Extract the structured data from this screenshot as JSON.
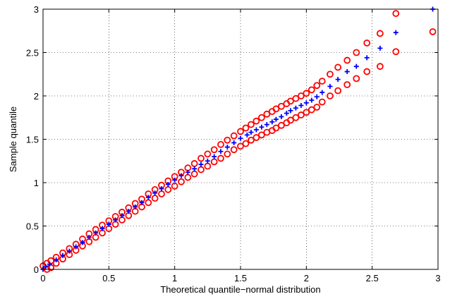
{
  "chart_data": {
    "type": "scatter",
    "title": "",
    "xlabel": "Theoretical quantile−normal distribution",
    "ylabel": "Sample quantile",
    "xlim": [
      0,
      3
    ],
    "ylim": [
      0,
      3
    ],
    "grid": true,
    "x_ticks": [
      0,
      0.5,
      1,
      1.5,
      2,
      2.5,
      3
    ],
    "y_ticks": [
      0,
      0.5,
      1,
      1.5,
      2,
      2.5,
      3
    ],
    "x_tick_labels": [
      "0",
      "0.5",
      "1",
      "1.5",
      "2",
      "2.5",
      "3"
    ],
    "y_tick_labels": [
      "0",
      "0.5",
      "1",
      "1.5",
      "2",
      "2.5",
      "3"
    ],
    "series": [
      {
        "marker": "plus",
        "color": "#0000ff",
        "points": [
          [
            0.0,
            0.0
          ],
          [
            0.02,
            0.03
          ],
          [
            0.05,
            0.06
          ],
          [
            0.1,
            0.11
          ],
          [
            0.15,
            0.16
          ],
          [
            0.2,
            0.21
          ],
          [
            0.25,
            0.26
          ],
          [
            0.3,
            0.31
          ],
          [
            0.35,
            0.37
          ],
          [
            0.4,
            0.42
          ],
          [
            0.45,
            0.47
          ],
          [
            0.5,
            0.52
          ],
          [
            0.55,
            0.57
          ],
          [
            0.6,
            0.62
          ],
          [
            0.65,
            0.67
          ],
          [
            0.7,
            0.72
          ],
          [
            0.75,
            0.77
          ],
          [
            0.8,
            0.83
          ],
          [
            0.85,
            0.88
          ],
          [
            0.9,
            0.93
          ],
          [
            0.95,
            0.98
          ],
          [
            1.0,
            1.03
          ],
          [
            1.05,
            1.08
          ],
          [
            1.1,
            1.12
          ],
          [
            1.15,
            1.16
          ],
          [
            1.2,
            1.21
          ],
          [
            1.25,
            1.25
          ],
          [
            1.3,
            1.3
          ],
          [
            1.35,
            1.36
          ],
          [
            1.4,
            1.41
          ],
          [
            1.45,
            1.46
          ],
          [
            1.5,
            1.51
          ],
          [
            1.55,
            1.55
          ],
          [
            1.58,
            1.58
          ],
          [
            1.62,
            1.61
          ],
          [
            1.66,
            1.64
          ],
          [
            1.7,
            1.67
          ],
          [
            1.74,
            1.7
          ],
          [
            1.77,
            1.73
          ],
          [
            1.81,
            1.76
          ],
          [
            1.85,
            1.8
          ],
          [
            1.88,
            1.83
          ],
          [
            1.92,
            1.86
          ],
          [
            1.96,
            1.89
          ],
          [
            2.0,
            1.92
          ],
          [
            2.04,
            1.95
          ],
          [
            2.08,
            1.99
          ],
          [
            2.12,
            2.04
          ],
          [
            2.18,
            2.11
          ],
          [
            2.24,
            2.19
          ],
          [
            2.31,
            2.28
          ],
          [
            2.38,
            2.34
          ],
          [
            2.46,
            2.44
          ],
          [
            2.56,
            2.55
          ],
          [
            2.68,
            2.73
          ],
          [
            2.96,
            3.0
          ]
        ]
      },
      {
        "marker": "circle",
        "color": "#ff0000",
        "points": [
          [
            0.0,
            0.04
          ],
          [
            0.03,
            0.07
          ],
          [
            0.06,
            0.1
          ],
          [
            0.1,
            0.14
          ],
          [
            0.15,
            0.19
          ],
          [
            0.2,
            0.24
          ],
          [
            0.25,
            0.29
          ],
          [
            0.3,
            0.35
          ],
          [
            0.35,
            0.41
          ],
          [
            0.4,
            0.46
          ],
          [
            0.45,
            0.51
          ],
          [
            0.5,
            0.56
          ],
          [
            0.55,
            0.61
          ],
          [
            0.6,
            0.66
          ],
          [
            0.65,
            0.71
          ],
          [
            0.7,
            0.76
          ],
          [
            0.75,
            0.81
          ],
          [
            0.8,
            0.87
          ],
          [
            0.85,
            0.92
          ],
          [
            0.9,
            0.97
          ],
          [
            0.95,
            1.02
          ],
          [
            1.0,
            1.07
          ],
          [
            1.05,
            1.12
          ],
          [
            1.1,
            1.17
          ],
          [
            1.15,
            1.22
          ],
          [
            1.2,
            1.28
          ],
          [
            1.25,
            1.33
          ],
          [
            1.3,
            1.38
          ],
          [
            1.35,
            1.44
          ],
          [
            1.4,
            1.49
          ],
          [
            1.45,
            1.54
          ],
          [
            1.5,
            1.59
          ],
          [
            1.54,
            1.63
          ],
          [
            1.58,
            1.67
          ],
          [
            1.62,
            1.71
          ],
          [
            1.66,
            1.75
          ],
          [
            1.7,
            1.79
          ],
          [
            1.74,
            1.82
          ],
          [
            1.77,
            1.85
          ],
          [
            1.81,
            1.88
          ],
          [
            1.85,
            1.91
          ],
          [
            1.88,
            1.94
          ],
          [
            1.92,
            1.97
          ],
          [
            1.96,
            2.0
          ],
          [
            2.0,
            2.03
          ],
          [
            2.04,
            2.07
          ],
          [
            2.08,
            2.12
          ],
          [
            2.12,
            2.17
          ],
          [
            2.18,
            2.25
          ],
          [
            2.24,
            2.33
          ],
          [
            2.31,
            2.41
          ],
          [
            2.38,
            2.5
          ],
          [
            2.46,
            2.61
          ],
          [
            2.56,
            2.72
          ],
          [
            2.68,
            2.95
          ],
          [
            2.96,
            2.74
          ]
        ]
      },
      {
        "marker": "circle",
        "color": "#ff0000",
        "points": [
          [
            0.03,
            0.0
          ],
          [
            0.06,
            0.02
          ],
          [
            0.1,
            0.07
          ],
          [
            0.15,
            0.12
          ],
          [
            0.2,
            0.17
          ],
          [
            0.25,
            0.22
          ],
          [
            0.3,
            0.27
          ],
          [
            0.35,
            0.32
          ],
          [
            0.4,
            0.37
          ],
          [
            0.45,
            0.42
          ],
          [
            0.5,
            0.47
          ],
          [
            0.55,
            0.52
          ],
          [
            0.6,
            0.57
          ],
          [
            0.65,
            0.62
          ],
          [
            0.7,
            0.67
          ],
          [
            0.75,
            0.72
          ],
          [
            0.8,
            0.77
          ],
          [
            0.85,
            0.82
          ],
          [
            0.9,
            0.87
          ],
          [
            0.95,
            0.92
          ],
          [
            1.0,
            0.96
          ],
          [
            1.05,
            1.01
          ],
          [
            1.1,
            1.06
          ],
          [
            1.15,
            1.1
          ],
          [
            1.2,
            1.15
          ],
          [
            1.25,
            1.19
          ],
          [
            1.3,
            1.24
          ],
          [
            1.35,
            1.28
          ],
          [
            1.4,
            1.33
          ],
          [
            1.45,
            1.38
          ],
          [
            1.5,
            1.42
          ],
          [
            1.54,
            1.45
          ],
          [
            1.58,
            1.49
          ],
          [
            1.62,
            1.52
          ],
          [
            1.66,
            1.55
          ],
          [
            1.7,
            1.58
          ],
          [
            1.74,
            1.6
          ],
          [
            1.77,
            1.63
          ],
          [
            1.81,
            1.66
          ],
          [
            1.85,
            1.69
          ],
          [
            1.88,
            1.72
          ],
          [
            1.92,
            1.75
          ],
          [
            1.96,
            1.78
          ],
          [
            2.0,
            1.81
          ],
          [
            2.04,
            1.84
          ],
          [
            2.08,
            1.87
          ],
          [
            2.12,
            1.93
          ],
          [
            2.18,
            2.0
          ],
          [
            2.24,
            2.06
          ],
          [
            2.31,
            2.13
          ],
          [
            2.38,
            2.2
          ],
          [
            2.46,
            2.28
          ],
          [
            2.56,
            2.34
          ],
          [
            2.68,
            2.51
          ]
        ]
      }
    ]
  }
}
